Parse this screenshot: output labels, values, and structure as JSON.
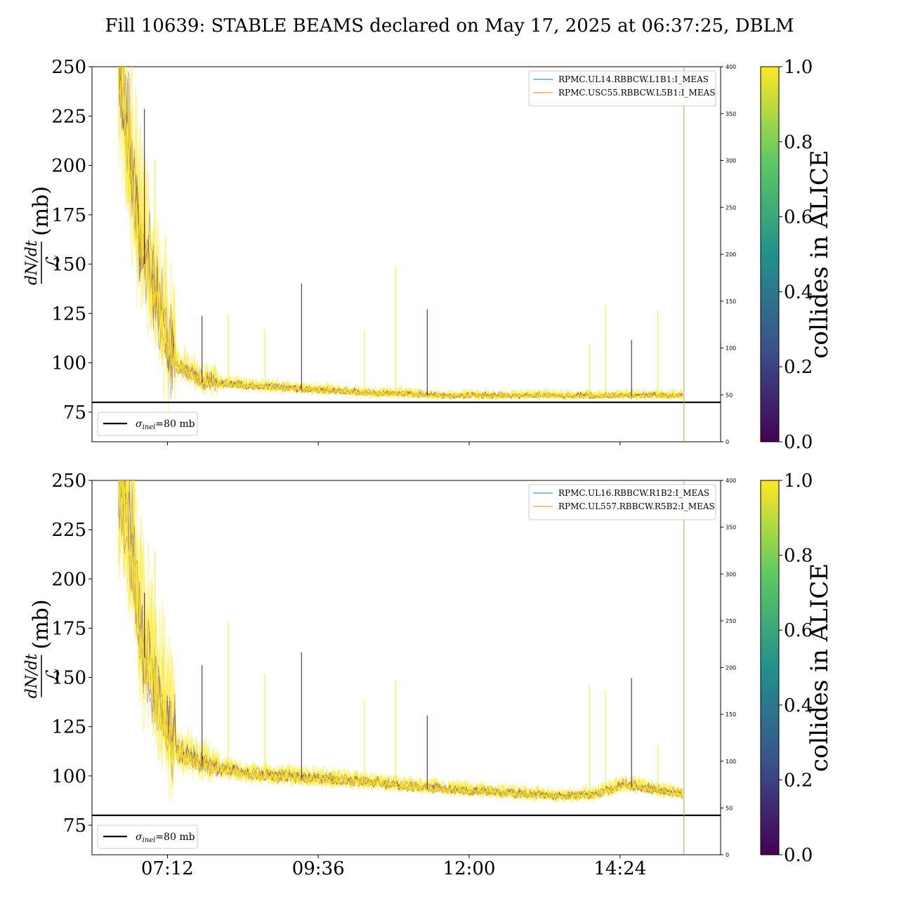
{
  "figure": {
    "title": "Fill 10639: STABLE BEAMS declared on May 17, 2025 at 06:37:25, DBLM"
  },
  "colormap": {
    "stops": [
      "#440154",
      "#3b528b",
      "#21918c",
      "#5ec962",
      "#fde725"
    ],
    "line_black": "#000000",
    "legend_blue": "#1f77b4",
    "legend_orange": "#ff7f0e"
  },
  "chart_data": [
    {
      "type": "line",
      "panel": "top",
      "ylabel_frac_num": "dN/dt",
      "ylabel_frac_den": "ℒ",
      "ylabel_unit": "(mb)",
      "ylim": [
        60,
        250
      ],
      "yticks": [
        75,
        100,
        125,
        150,
        175,
        200,
        225,
        250
      ],
      "xlim": [
        "06:00",
        "16:00"
      ],
      "xticks": [
        "07:12",
        "09:36",
        "12:00",
        "14:24"
      ],
      "xticks_labeled": false,
      "y2lim": [
        0,
        400
      ],
      "y2ticks": [
        0,
        50,
        100,
        150,
        200,
        250,
        300,
        350,
        400
      ],
      "hline": {
        "y": 80,
        "label": "σinel=80 mb",
        "label_main": "σ",
        "label_sub": "inel",
        "label_rest": "=80 mb"
      },
      "legend": [
        "RPMC.UL14.RBBCW.L1B1:I_MEAS",
        "RPMC.USC55.RBBCW.L5B1:I_MEAS"
      ],
      "colorbar": {
        "label": "collides in ALICE",
        "ticks": [
          "0.0",
          "0.2",
          "0.4",
          "0.6",
          "0.8",
          "1.0"
        ]
      },
      "series": [
        {
          "x": [
            "06:25",
            "06:35",
            "06:45",
            "06:55",
            "07:05",
            "07:15",
            "07:30",
            "07:45",
            "08:00",
            "08:30",
            "09:00",
            "09:30",
            "10:00",
            "10:30",
            "11:00",
            "11:30",
            "12:00",
            "12:30",
            "13:00",
            "13:30",
            "14:00",
            "14:30",
            "15:00",
            "15:25"
          ],
          "y": [
            250,
            200,
            160,
            140,
            120,
            100,
            95,
            90,
            89,
            88,
            87,
            86,
            85,
            84,
            84,
            83,
            83,
            83,
            83,
            83,
            83,
            83,
            83,
            83
          ]
        }
      ]
    },
    {
      "type": "line",
      "panel": "bottom",
      "ylabel_frac_num": "dN/dt",
      "ylabel_frac_den": "ℒ",
      "ylabel_unit": "(mb)",
      "ylim": [
        60,
        250
      ],
      "yticks": [
        75,
        100,
        125,
        150,
        175,
        200,
        225,
        250
      ],
      "xlim": [
        "06:00",
        "16:00"
      ],
      "xticks": [
        "07:12",
        "09:36",
        "12:00",
        "14:24"
      ],
      "xticks_labeled": true,
      "y2lim": [
        0,
        400
      ],
      "y2ticks": [
        0,
        50,
        100,
        150,
        200,
        250,
        300,
        350,
        400
      ],
      "hline": {
        "y": 80,
        "label": "σinel=80 mb",
        "label_main": "σ",
        "label_sub": "inel",
        "label_rest": "=80 mb"
      },
      "legend": [
        "RPMC.UL16.RBBCW.R1B2:I_MEAS",
        "RPMC.UL557.RBBCW.R5B2:I_MEAS"
      ],
      "colorbar": {
        "label": "collides in ALICE",
        "ticks": [
          "0.0",
          "0.2",
          "0.4",
          "0.6",
          "0.8",
          "1.0"
        ]
      },
      "series": [
        {
          "x": [
            "06:25",
            "06:35",
            "06:45",
            "06:55",
            "07:05",
            "07:15",
            "07:30",
            "07:45",
            "08:00",
            "08:30",
            "09:00",
            "09:30",
            "10:00",
            "10:30",
            "11:00",
            "11:30",
            "12:00",
            "12:30",
            "13:00",
            "13:30",
            "14:00",
            "14:30",
            "15:00",
            "15:25"
          ],
          "y": [
            250,
            220,
            170,
            150,
            130,
            112,
            108,
            105,
            103,
            100,
            99,
            98,
            97,
            96,
            94,
            93,
            92,
            91,
            90,
            89,
            90,
            95,
            92,
            90
          ]
        }
      ]
    }
  ]
}
